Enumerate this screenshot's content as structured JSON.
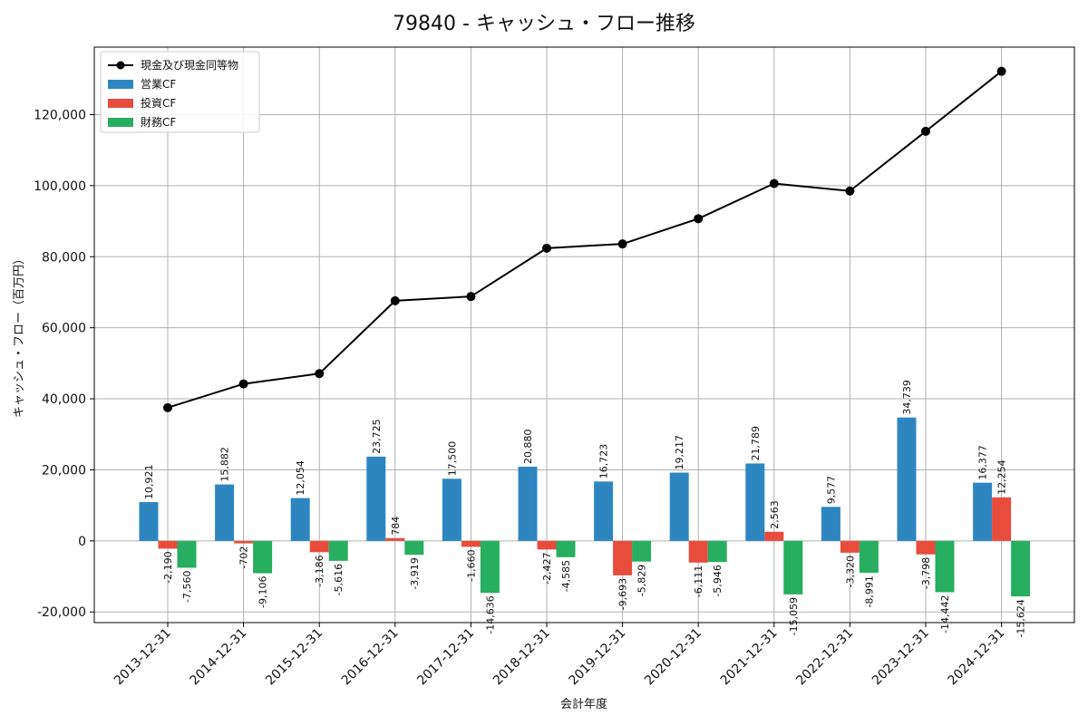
{
  "chart_data": {
    "type": "bar",
    "title": "79840 - キャッシュ・フロー推移",
    "xlabel": "会計年度",
    "ylabel": "キャッシュ・フロー（百万円）",
    "ylim": [
      -23000,
      139000
    ],
    "yticks": [
      -20000,
      0,
      20000,
      40000,
      60000,
      80000,
      100000,
      120000
    ],
    "ytick_labels": [
      "-20,000",
      "0",
      "20,000",
      "40,000",
      "60,000",
      "80,000",
      "100,000",
      "120,000"
    ],
    "grid": true,
    "legend_position": "top-left",
    "categories": [
      "2013-12-31",
      "2014-12-31",
      "2015-12-31",
      "2016-12-31",
      "2017-12-31",
      "2018-12-31",
      "2019-12-31",
      "2020-12-31",
      "2021-12-31",
      "2022-12-31",
      "2023-12-31",
      "2024-12-31"
    ],
    "series": [
      {
        "name": "営業CF",
        "kind": "bar",
        "color": "#2e86c1",
        "values": [
          10921,
          15882,
          12054,
          23725,
          17500,
          20880,
          16723,
          19217,
          21789,
          9577,
          34739,
          16377
        ],
        "labels": [
          "10,921",
          "15,882",
          "12,054",
          "23,725",
          "17,500",
          "20,880",
          "16,723",
          "19,217",
          "21,789",
          "9,577",
          "34,739",
          "16,377"
        ]
      },
      {
        "name": "投資CF",
        "kind": "bar",
        "color": "#e74c3c",
        "values": [
          -2190,
          -702,
          -3186,
          784,
          -1660,
          -2427,
          -9693,
          -6111,
          2563,
          -3320,
          -3798,
          12254
        ],
        "labels": [
          "-2,190",
          "-702",
          "-3,186",
          "784",
          "-1,660",
          "-2,427",
          "-9,693",
          "-6,111",
          "2,563",
          "-3,320",
          "-3,798",
          "12,254"
        ]
      },
      {
        "name": "財務CF",
        "kind": "bar",
        "color": "#27ae60",
        "values": [
          -7560,
          -9106,
          -5616,
          -3919,
          -14636,
          -4585,
          -5829,
          -5946,
          -15059,
          -8991,
          -14442,
          -15624
        ],
        "labels": [
          "-7,560",
          "-9,106",
          "-5,616",
          "-3,919",
          "-14,636",
          "-4,585",
          "-5,829",
          "-5,946",
          "-15,059",
          "-8,991",
          "-14,442",
          "-15,624"
        ]
      },
      {
        "name": "現金及び現金同等物",
        "kind": "line",
        "color": "#000000",
        "values": [
          37500,
          44200,
          47100,
          67600,
          68800,
          82400,
          83600,
          90700,
          100600,
          98500,
          115300,
          132200
        ]
      }
    ]
  }
}
